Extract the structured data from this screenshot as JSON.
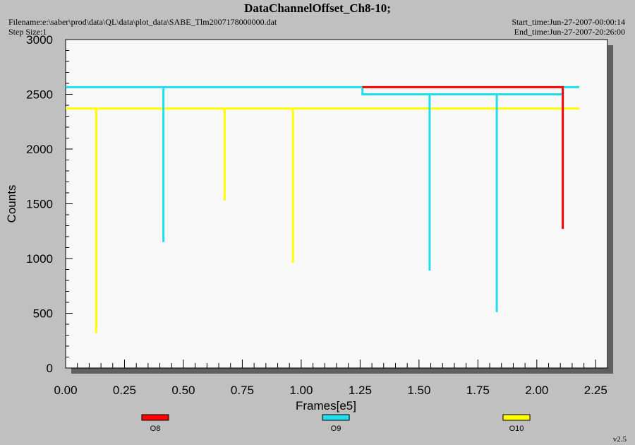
{
  "header": {
    "title": "DataChannelOffset_Ch8-10;",
    "filename": "Filename:e:\\saber\\prod\\data\\QL\\data\\plot_data\\SABE_Tlm2007178000000.dat",
    "step_size": "Step Size:1",
    "start_time": "Start_time:Jun-27-2007-00:00:14",
    "end_time": "End_time:Jun-27-2007-20:26:00"
  },
  "version": "v2.5",
  "colors": {
    "background": "#c0c0c0",
    "plot_bg": "#f8f8f8",
    "O8": "#ff0000",
    "O9": "#22ddee",
    "O10": "#ffff00"
  },
  "chart_data": {
    "type": "line",
    "title": "DataChannelOffset_Ch8-10;",
    "xlabel": "Frames[e5]",
    "ylabel": "Counts",
    "xlim": [
      0,
      2.3
    ],
    "ylim": [
      0,
      3000
    ],
    "xticks": [
      "0.00",
      "0.25",
      "0.50",
      "0.75",
      "1.00",
      "1.25",
      "1.50",
      "1.75",
      "2.00",
      "2.25"
    ],
    "yticks": [
      "0",
      "500",
      "1000",
      "1500",
      "2000",
      "2500",
      "3000"
    ],
    "grid": false,
    "legend_position": "bottom",
    "series": [
      {
        "name": "O8",
        "color": "#ff0000",
        "x": [
          1.26,
          1.26,
          1.545,
          1.545,
          1.83,
          1.83,
          2.11,
          2.11,
          2.11
        ],
        "y": [
          2565,
          2565,
          2565,
          2565,
          2565,
          2565,
          2565,
          1270,
          2565
        ]
      },
      {
        "name": "O9",
        "color": "#22ddee",
        "x": [
          0.0,
          0.415,
          0.415,
          0.415,
          1.26,
          1.26,
          1.545,
          1.545,
          1.545,
          1.83,
          1.83,
          1.83,
          2.11,
          2.11,
          2.18
        ],
        "y": [
          2565,
          2565,
          1150,
          2565,
          2565,
          2500,
          2500,
          890,
          2500,
          2500,
          510,
          2500,
          2500,
          2565,
          2565
        ]
      },
      {
        "name": "O10",
        "color": "#ffff00",
        "x": [
          0.0,
          0.13,
          0.13,
          0.13,
          0.675,
          0.675,
          0.675,
          0.965,
          0.965,
          0.965,
          2.18
        ],
        "y": [
          2370,
          2370,
          320,
          2370,
          2370,
          1530,
          2370,
          2370,
          960,
          2370,
          2370
        ]
      }
    ]
  }
}
